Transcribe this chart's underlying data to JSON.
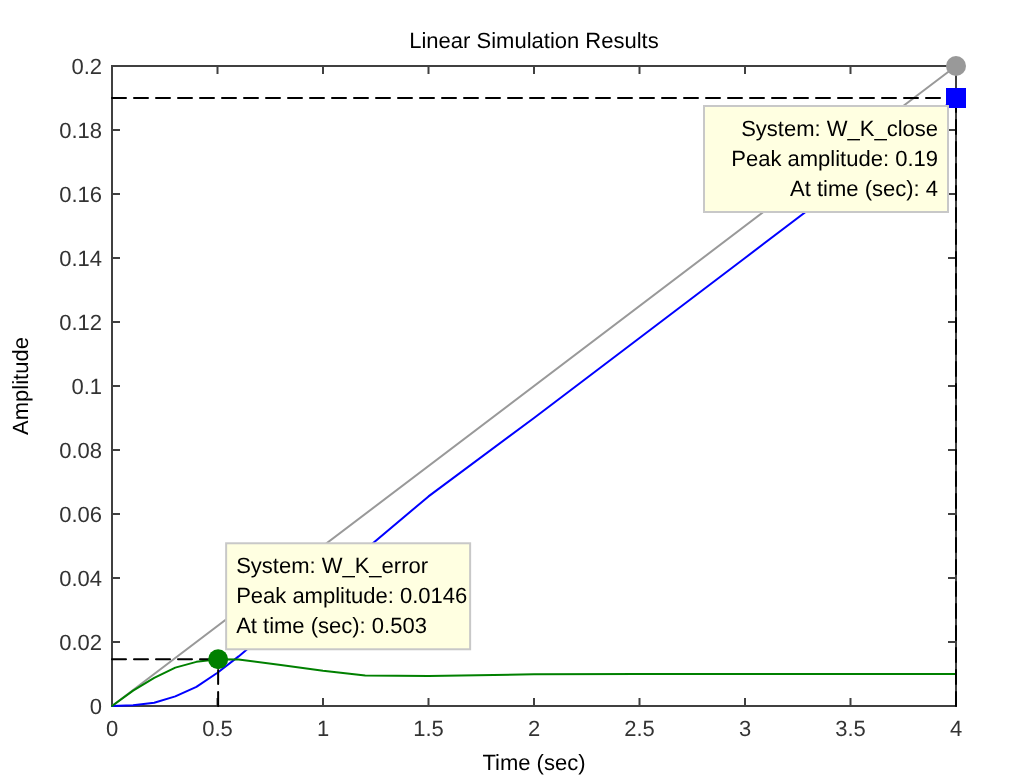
{
  "chart_data": {
    "type": "line",
    "title": "Linear Simulation Results",
    "xlabel": "Time (sec)",
    "ylabel": "Amplitude",
    "xlim": [
      0,
      4
    ],
    "ylim": [
      0,
      0.2
    ],
    "xticks": [
      0,
      0.5,
      1,
      1.5,
      2,
      2.5,
      3,
      3.5,
      4
    ],
    "yticks": [
      0,
      0.02,
      0.04,
      0.06,
      0.08,
      0.1,
      0.12,
      0.14,
      0.16,
      0.18,
      0.2
    ],
    "grid": false,
    "series": [
      {
        "color": "#999999",
        "x": [
          0,
          4
        ],
        "values": [
          0,
          0.2
        ],
        "line_style": "solid",
        "marker": "none"
      },
      {
        "color": "#0000ff",
        "x": [
          0,
          0.1,
          0.2,
          0.3,
          0.4,
          0.5,
          0.6,
          1.5,
          2,
          2.5,
          3,
          4
        ],
        "values": [
          0,
          0.0002,
          0.001,
          0.003,
          0.006,
          0.0104,
          0.0155,
          0.0655,
          0.09,
          0.115,
          0.14,
          0.19
        ],
        "line_style": "solid",
        "marker": "none"
      },
      {
        "color": "#008000",
        "x": [
          0,
          0.1,
          0.2,
          0.3,
          0.4,
          0.503,
          0.6,
          0.8,
          1,
          1.2,
          1.5,
          2,
          2.5,
          3,
          4
        ],
        "values": [
          0,
          0.0048,
          0.0088,
          0.012,
          0.0138,
          0.0146,
          0.0145,
          0.0128,
          0.011,
          0.0095,
          0.0094,
          0.0099,
          0.01,
          0.01,
          0.01
        ],
        "line_style": "solid",
        "marker": "none"
      },
      {
        "color": "#000000",
        "x": [
          0,
          0.503
        ],
        "values": [
          0.0146,
          0.0146
        ],
        "line_style": "dashed",
        "marker": "none"
      },
      {
        "color": "#000000",
        "x": [
          0.503,
          0.503
        ],
        "values": [
          0,
          0.0146
        ],
        "line_style": "dashed",
        "marker": "none"
      },
      {
        "color": "#000000",
        "x": [
          0,
          4
        ],
        "values": [
          0.19,
          0.19
        ],
        "line_style": "dashed",
        "marker": "none"
      },
      {
        "color": "#000000",
        "x": [
          4,
          4
        ],
        "values": [
          0,
          0.19
        ],
        "line_style": "dashed",
        "marker": "none"
      },
      {
        "type": "scatter",
        "color": "#999999",
        "x": [
          4
        ],
        "values": [
          0.2
        ],
        "marker": "circle"
      },
      {
        "type": "scatter",
        "color": "#008000",
        "x": [
          0.503
        ],
        "values": [
          0.0146
        ],
        "marker": "circle"
      },
      {
        "type": "scatter",
        "color": "#0000ff",
        "x": [
          4
        ],
        "values": [
          0.19
        ],
        "marker": "square"
      }
    ],
    "annotations": [
      {
        "text": "System: W_K_error\nPeak amplitude: 0.0146\nAt time (sec): 0.503",
        "x": 0.503,
        "y": 0.0146
      },
      {
        "text": "System: W_K_close\nPeak amplitude: 0.19\nAt time (sec): 4",
        "x": 4,
        "y": 0.19
      }
    ]
  }
}
